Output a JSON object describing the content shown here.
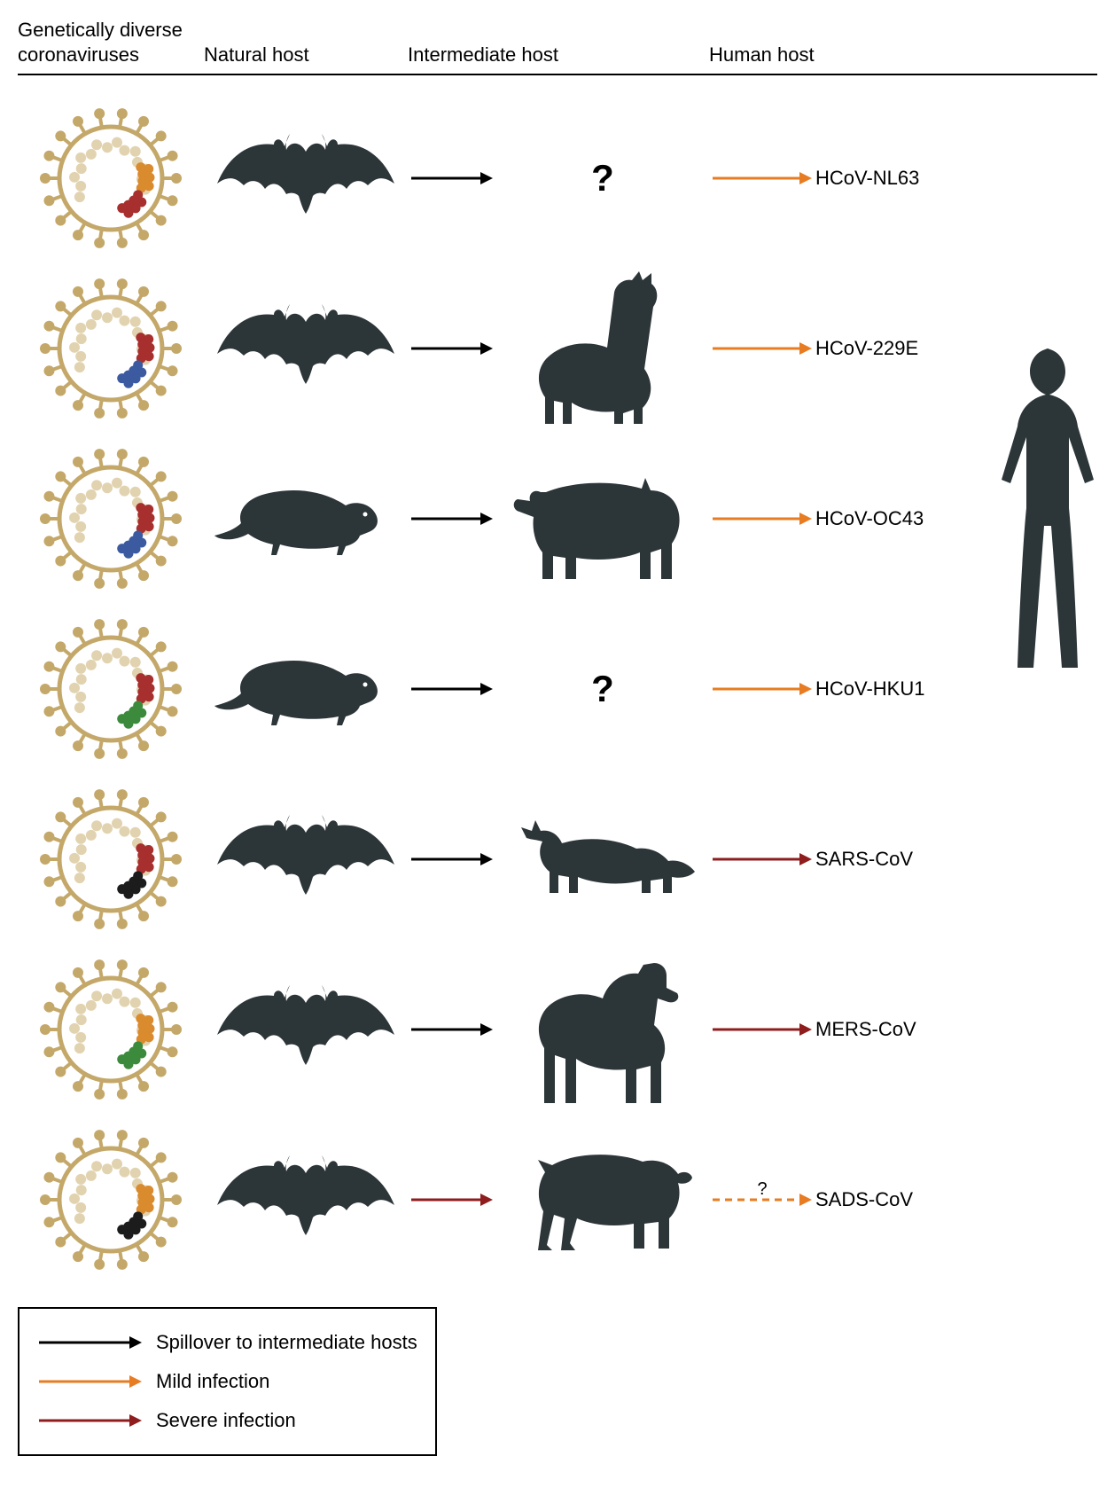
{
  "headers": {
    "col1": "Genetically diverse\ncoronaviruses",
    "col2": "Natural host",
    "col3": "Intermediate host",
    "col4": "Human host"
  },
  "colors": {
    "spillover": "#000000",
    "mild": "#e77c22",
    "severe": "#8f1d1d",
    "virus_tan": "#c4a86a",
    "virus_light": "#e2d3b0",
    "silhouette": "#2c3538",
    "rna_red": "#a72f2e",
    "rna_orange": "#d98b2e",
    "rna_blue": "#3b5aa0",
    "rna_green": "#3c8a3c",
    "rna_black": "#1c1c1c"
  },
  "rows": [
    {
      "virus_rna": [
        "rna_orange",
        "rna_red"
      ],
      "natural": "bat",
      "arrow1": "spillover",
      "intermediate": "question",
      "arrow2": "mild",
      "arrow2_style": "solid",
      "arrow2_q": false,
      "label": "HCoV-NL63"
    },
    {
      "virus_rna": [
        "rna_red",
        "rna_blue"
      ],
      "natural": "bat",
      "arrow1": "spillover",
      "intermediate": "alpaca",
      "arrow2": "mild",
      "arrow2_style": "solid",
      "arrow2_q": false,
      "label": "HCoV-229E"
    },
    {
      "virus_rna": [
        "rna_red",
        "rna_blue"
      ],
      "natural": "rodent",
      "arrow1": "spillover",
      "intermediate": "cow",
      "arrow2": "mild",
      "arrow2_style": "solid",
      "arrow2_q": false,
      "label": "HCoV-OC43"
    },
    {
      "virus_rna": [
        "rna_red",
        "rna_green"
      ],
      "natural": "rodent",
      "arrow1": "spillover",
      "intermediate": "question",
      "arrow2": "mild",
      "arrow2_style": "solid",
      "arrow2_q": false,
      "label": "HCoV-HKU1"
    },
    {
      "virus_rna": [
        "rna_red",
        "rna_black"
      ],
      "natural": "bat",
      "arrow1": "spillover",
      "intermediate": "civet",
      "arrow2": "severe",
      "arrow2_style": "solid",
      "arrow2_q": false,
      "label": "SARS-CoV"
    },
    {
      "virus_rna": [
        "rna_orange",
        "rna_green"
      ],
      "natural": "bat",
      "arrow1": "spillover",
      "intermediate": "camel",
      "arrow2": "severe",
      "arrow2_style": "solid",
      "arrow2_q": false,
      "label": "MERS-CoV"
    },
    {
      "virus_rna": [
        "rna_orange",
        "rna_black"
      ],
      "natural": "bat",
      "arrow1": "severe",
      "intermediate": "pig",
      "arrow2": "mild",
      "arrow2_style": "dashed",
      "arrow2_q": true,
      "label": "SADS-CoV"
    }
  ],
  "legend": [
    {
      "color": "spillover",
      "label": "Spillover to intermediate hosts"
    },
    {
      "color": "mild",
      "label": "Mild infection"
    },
    {
      "color": "severe",
      "label": "Severe infection"
    }
  ]
}
